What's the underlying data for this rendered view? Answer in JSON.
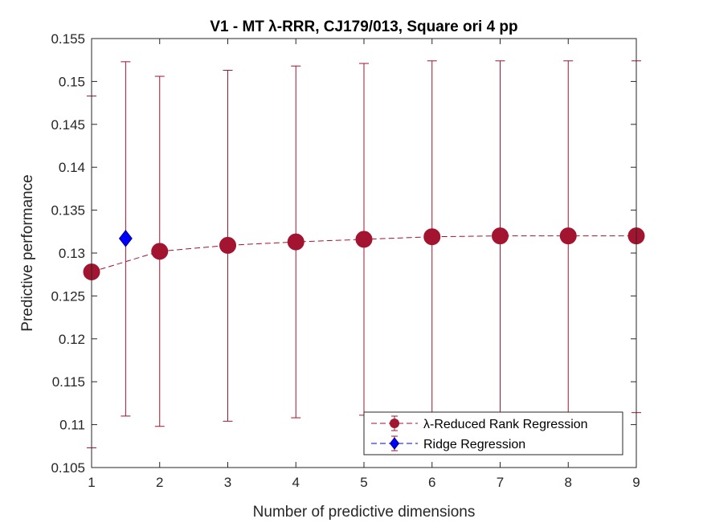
{
  "chart_data": {
    "type": "scatter",
    "title": "V1 - MT λ-RRR, CJ179/013, Square ori 4 pp",
    "xlabel": "Number of predictive dimensions",
    "ylabel": "Predictive performance",
    "xlim": [
      1,
      9
    ],
    "ylim": [
      0.105,
      0.155
    ],
    "xticks": [
      "1",
      "2",
      "3",
      "4",
      "5",
      "6",
      "7",
      "8",
      "9"
    ],
    "yticks": [
      "0.105",
      "0.11",
      "0.115",
      "0.12",
      "0.125",
      "0.13",
      "0.135",
      "0.14",
      "0.145",
      "0.15",
      "0.155"
    ],
    "grid": false,
    "legend_position": "bottom-right",
    "series": [
      {
        "name": "λ-Reduced Rank Regression",
        "marker": "circle",
        "line": "dashed",
        "color": "#a2142f",
        "x": [
          1,
          2,
          3,
          4,
          5,
          6,
          7,
          8,
          9
        ],
        "y": [
          0.1278,
          0.1302,
          0.1309,
          0.1313,
          0.1316,
          0.1319,
          0.132,
          0.132,
          0.132
        ],
        "err_low": [
          0.1073,
          0.1098,
          0.1104,
          0.1108,
          0.1111,
          0.1113,
          0.1114,
          0.1114,
          0.1114
        ],
        "err_high": [
          0.1483,
          0.1506,
          0.1513,
          0.1518,
          0.1521,
          0.1524,
          0.1524,
          0.1524,
          0.1524
        ]
      },
      {
        "name": "Ridge Regression",
        "marker": "diamond",
        "line": "dashed",
        "color": "#0000ff",
        "error_color": "#a2142f",
        "x": [
          1.5
        ],
        "y": [
          0.1317
        ],
        "err_low": [
          0.111
        ],
        "err_high": [
          0.1523
        ]
      }
    ]
  }
}
